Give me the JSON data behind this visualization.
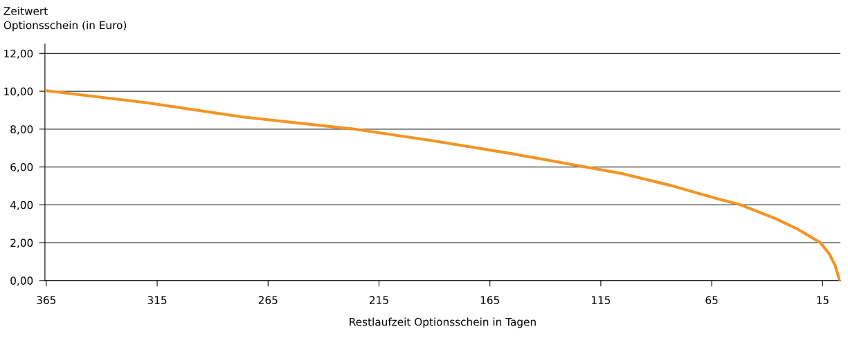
{
  "chart_data": {
    "type": "line",
    "ylabel": "Zeitwert\nOptionsschein (in Euro)",
    "xlabel": "Restlaufzeit Optionsschein in Tagen",
    "x": [
      365,
      320,
      277,
      226,
      190,
      155,
      122,
      105,
      84,
      63,
      52,
      37,
      26,
      16,
      12,
      9.4,
      7.8,
      7.2
    ],
    "series": [
      {
        "color": "#f39425",
        "values": [
          10.03,
          9.4,
          8.65,
          8.0,
          7.37,
          6.7,
          6.0,
          5.64,
          5.04,
          4.34,
          4.0,
          3.31,
          2.7,
          2.0,
          1.41,
          0.81,
          0.18,
          0
        ]
      }
    ],
    "xlim": [
      365.6,
      7
    ],
    "xticks": [
      365,
      315,
      265,
      215,
      165,
      115,
      65,
      15
    ],
    "ylim": [
      0,
      12.5
    ],
    "yticks": [
      {
        "value": 0,
        "label": "0,00"
      },
      {
        "value": 2,
        "label": "2,00"
      },
      {
        "value": 4,
        "label": "4,00"
      },
      {
        "value": 6,
        "label": "6,00"
      },
      {
        "value": 8,
        "label": "8,00"
      },
      {
        "value": 10,
        "label": "10,00"
      },
      {
        "value": 12,
        "label": "12,00"
      }
    ],
    "grid": "y",
    "marker": "none",
    "line_style": "solid"
  }
}
